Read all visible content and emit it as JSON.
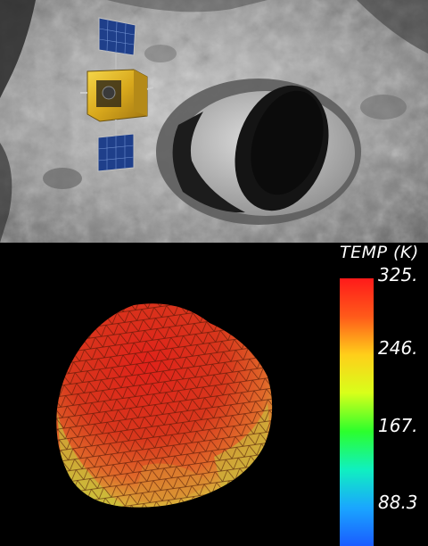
{
  "colorbar": {
    "title": "TEMP (K)",
    "ticks": [
      {
        "label": "325.",
        "value": 325
      },
      {
        "label": "246.",
        "value": 246
      },
      {
        "label": "167.",
        "value": 167
      },
      {
        "label": "88.3",
        "value": 88.3
      }
    ],
    "colors": [
      "#ff1a1a",
      "#ff5a1a",
      "#ffcf1a",
      "#d8ff1a",
      "#2cff2c",
      "#10f0c0",
      "#1aa6ff",
      "#1a5cff"
    ]
  },
  "scene": {
    "spacecraft": "spacecraft-with-solar-panels",
    "surface": "cratered-asteroid-surface",
    "model": "triangulated-asteroid-temperature-mesh"
  }
}
